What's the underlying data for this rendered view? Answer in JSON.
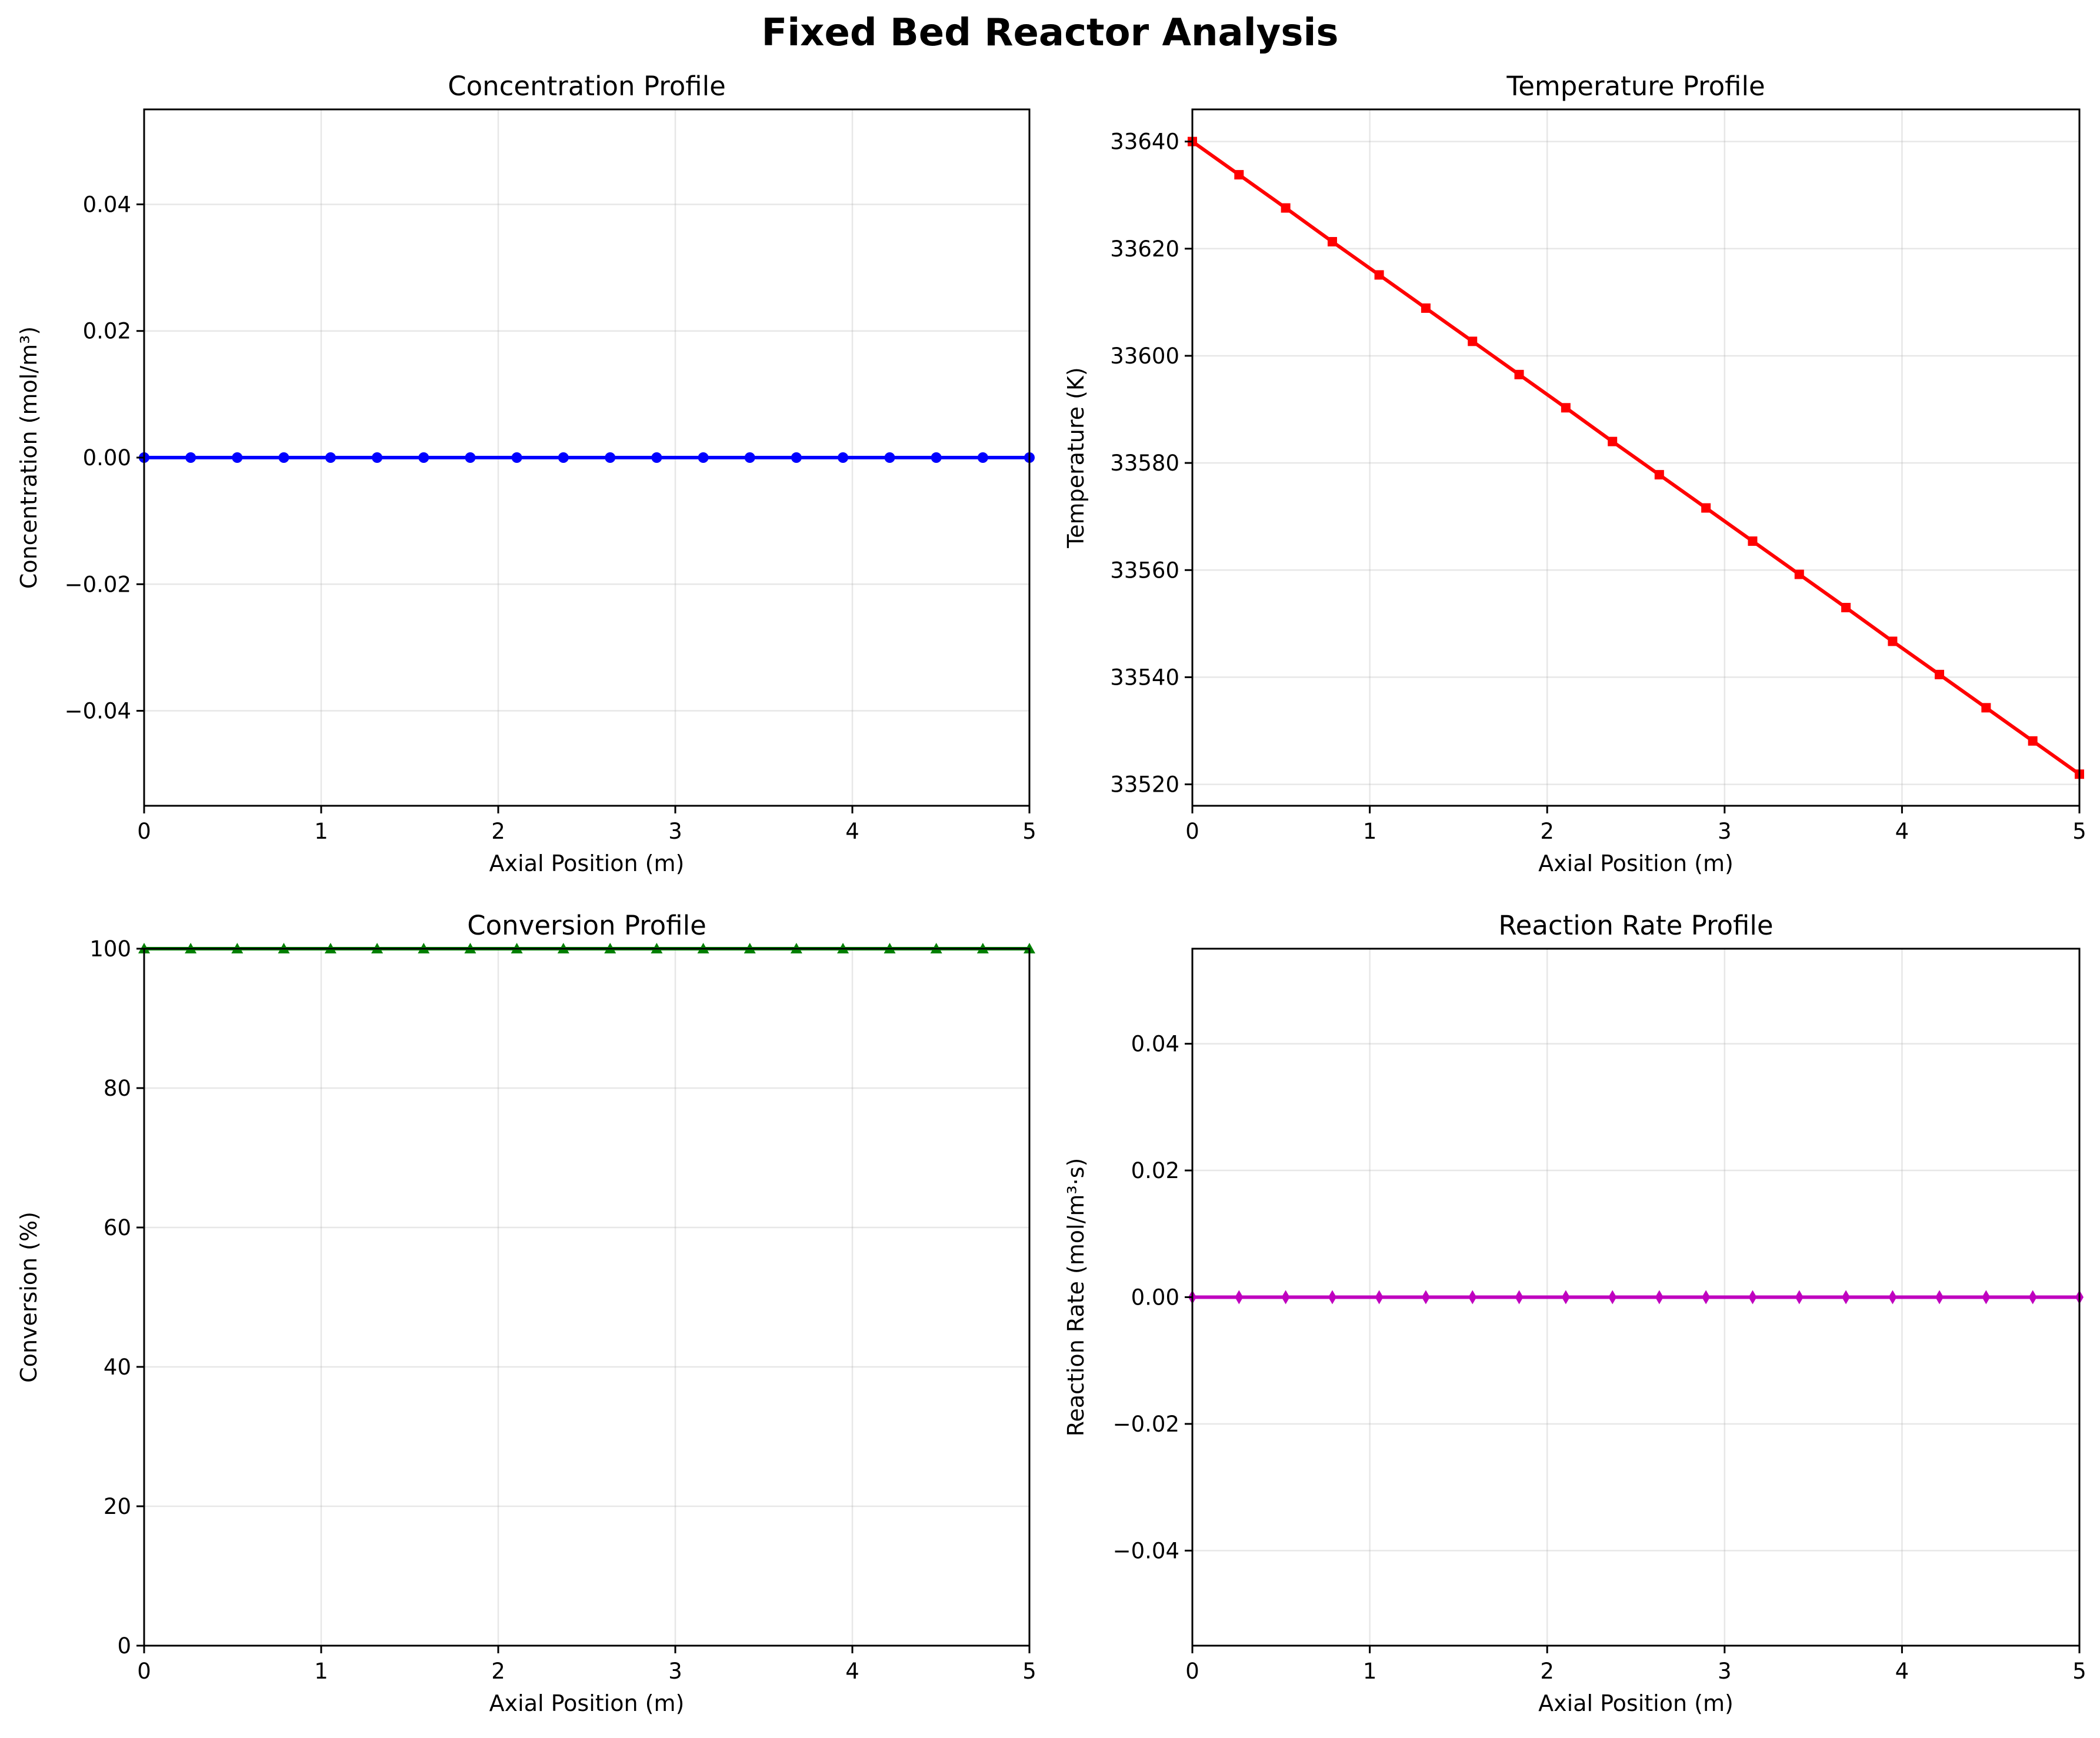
{
  "suptitle": "Fixed Bed Reactor Analysis",
  "chart_data": [
    {
      "type": "line",
      "title": "Concentration Profile",
      "xlabel": "Axial Position (m)",
      "ylabel": "Concentration (mol/m³)",
      "xlim": [
        0,
        5
      ],
      "ylim": [
        -0.055,
        0.055
      ],
      "xticks": [
        0,
        1,
        2,
        3,
        4,
        5
      ],
      "xtick_labels": [
        "0",
        "1",
        "2",
        "3",
        "4",
        "5"
      ],
      "yticks": [
        -0.04,
        -0.02,
        0,
        0.02,
        0.04
      ],
      "ytick_labels": [
        "−0.04",
        "−0.02",
        "0.00",
        "0.02",
        "0.04"
      ],
      "grid": true,
      "color": "#0000ff",
      "marker": "circle",
      "x": [
        0,
        0.263,
        0.526,
        0.789,
        1.053,
        1.316,
        1.579,
        1.842,
        2.105,
        2.368,
        2.632,
        2.895,
        3.158,
        3.421,
        3.684,
        3.947,
        4.211,
        4.474,
        4.737,
        5.0
      ],
      "y": [
        0,
        0,
        0,
        0,
        0,
        0,
        0,
        0,
        0,
        0,
        0,
        0,
        0,
        0,
        0,
        0,
        0,
        0,
        0,
        0
      ]
    },
    {
      "type": "line",
      "title": "Temperature Profile",
      "xlabel": "Axial Position (m)",
      "ylabel": "Temperature (K)",
      "xlim": [
        0,
        5
      ],
      "ylim": [
        33516,
        33646
      ],
      "xticks": [
        0,
        1,
        2,
        3,
        4,
        5
      ],
      "xtick_labels": [
        "0",
        "1",
        "2",
        "3",
        "4",
        "5"
      ],
      "yticks": [
        33520,
        33540,
        33560,
        33580,
        33600,
        33620,
        33640
      ],
      "ytick_labels": [
        "33520",
        "33540",
        "33560",
        "33580",
        "33600",
        "33620",
        "33640"
      ],
      "grid": true,
      "color": "#ff0000",
      "marker": "square",
      "x": [
        0,
        0.263,
        0.526,
        0.789,
        1.053,
        1.316,
        1.579,
        1.842,
        2.105,
        2.368,
        2.632,
        2.895,
        3.158,
        3.421,
        3.684,
        3.947,
        4.211,
        4.474,
        4.737,
        5.0
      ],
      "y": [
        33640.0,
        33633.8,
        33627.6,
        33621.3,
        33615.1,
        33608.9,
        33602.7,
        33596.5,
        33590.3,
        33584.0,
        33577.8,
        33571.6,
        33565.4,
        33559.2,
        33553.0,
        33546.7,
        33540.5,
        33534.3,
        33528.1,
        33521.9
      ]
    },
    {
      "type": "line",
      "title": "Conversion Profile",
      "xlabel": "Axial Position (m)",
      "ylabel": "Conversion (%)",
      "xlim": [
        0,
        5
      ],
      "ylim": [
        0,
        100
      ],
      "xticks": [
        0,
        1,
        2,
        3,
        4,
        5
      ],
      "xtick_labels": [
        "0",
        "1",
        "2",
        "3",
        "4",
        "5"
      ],
      "yticks": [
        0,
        20,
        40,
        60,
        80,
        100
      ],
      "ytick_labels": [
        "0",
        "20",
        "40",
        "60",
        "80",
        "100"
      ],
      "grid": true,
      "color": "#008000",
      "marker": "triangle",
      "x": [
        0,
        0.263,
        0.526,
        0.789,
        1.053,
        1.316,
        1.579,
        1.842,
        2.105,
        2.368,
        2.632,
        2.895,
        3.158,
        3.421,
        3.684,
        3.947,
        4.211,
        4.474,
        4.737,
        5.0
      ],
      "y": [
        100,
        100,
        100,
        100,
        100,
        100,
        100,
        100,
        100,
        100,
        100,
        100,
        100,
        100,
        100,
        100,
        100,
        100,
        100,
        100
      ]
    },
    {
      "type": "line",
      "title": "Reaction Rate Profile",
      "xlabel": "Axial Position (m)",
      "ylabel": "Reaction Rate (mol/m³·s)",
      "xlim": [
        0,
        5
      ],
      "ylim": [
        -0.055,
        0.055
      ],
      "xticks": [
        0,
        1,
        2,
        3,
        4,
        5
      ],
      "xtick_labels": [
        "0",
        "1",
        "2",
        "3",
        "4",
        "5"
      ],
      "yticks": [
        -0.04,
        -0.02,
        0,
        0.02,
        0.04
      ],
      "ytick_labels": [
        "−0.04",
        "−0.02",
        "0.00",
        "0.02",
        "0.04"
      ],
      "grid": true,
      "color": "#bf00bf",
      "marker": "diamond",
      "x": [
        0,
        0.263,
        0.526,
        0.789,
        1.053,
        1.316,
        1.579,
        1.842,
        2.105,
        2.368,
        2.632,
        2.895,
        3.158,
        3.421,
        3.684,
        3.947,
        4.211,
        4.474,
        4.737,
        5.0
      ],
      "y": [
        0,
        0,
        0,
        0,
        0,
        0,
        0,
        0,
        0,
        0,
        0,
        0,
        0,
        0,
        0,
        0,
        0,
        0,
        0,
        0
      ]
    }
  ]
}
